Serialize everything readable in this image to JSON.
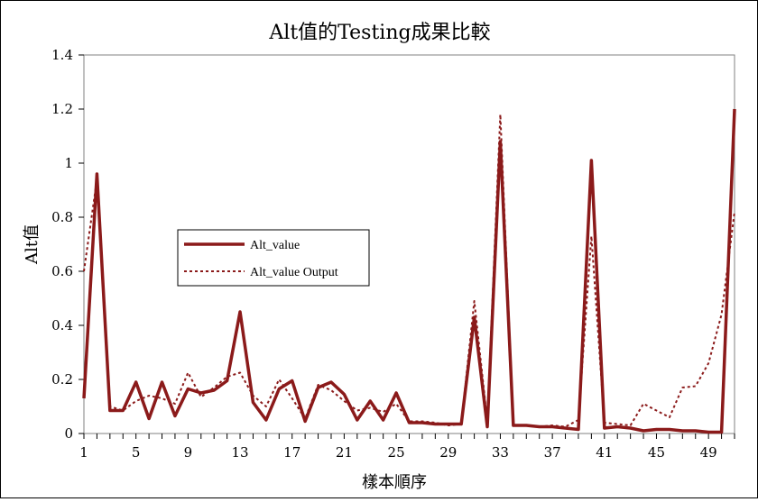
{
  "chart_data": {
    "type": "line",
    "title": "Alt值的Testing成果比較",
    "xlabel": "樣本順序",
    "ylabel": "Alt值",
    "xlim": [
      1,
      51
    ],
    "ylim": [
      0,
      1.4
    ],
    "yticks": [
      "0",
      "0.2",
      "0.4",
      "0.6",
      "0.8",
      "1",
      "1.2",
      "1.4"
    ],
    "xticks": [
      1,
      5,
      9,
      13,
      17,
      21,
      25,
      29,
      33,
      37,
      41,
      45,
      49
    ],
    "grid": false,
    "legend_position": "center-left",
    "x": [
      1,
      2,
      3,
      4,
      5,
      6,
      7,
      8,
      9,
      10,
      11,
      12,
      13,
      14,
      15,
      16,
      17,
      18,
      19,
      20,
      21,
      22,
      23,
      24,
      25,
      26,
      27,
      28,
      29,
      30,
      31,
      32,
      33,
      34,
      35,
      36,
      37,
      38,
      39,
      40,
      41,
      42,
      43,
      44,
      45,
      46,
      47,
      48,
      49,
      50,
      51
    ],
    "series": [
      {
        "name": "Alt_value",
        "style": "solid",
        "color": "#8b1a1a",
        "values": [
          0.13,
          0.96,
          0.085,
          0.085,
          0.19,
          0.055,
          0.19,
          0.065,
          0.165,
          0.15,
          0.16,
          0.195,
          0.45,
          0.115,
          0.05,
          0.165,
          0.195,
          0.045,
          0.17,
          0.19,
          0.145,
          0.05,
          0.12,
          0.05,
          0.15,
          0.04,
          0.04,
          0.035,
          0.035,
          0.035,
          0.43,
          0.025,
          1.08,
          0.03,
          0.03,
          0.025,
          0.025,
          0.02,
          0.015,
          1.01,
          0.02,
          0.025,
          0.02,
          0.01,
          0.015,
          0.015,
          0.01,
          0.01,
          0.005,
          0.005,
          1.2
        ]
      },
      {
        "name": "Alt_value Output",
        "style": "dotted",
        "color": "#8b1a1a",
        "values": [
          0.6,
          0.94,
          0.1,
          0.085,
          0.12,
          0.14,
          0.13,
          0.11,
          0.225,
          0.135,
          0.17,
          0.21,
          0.225,
          0.14,
          0.1,
          0.2,
          0.13,
          0.055,
          0.18,
          0.16,
          0.12,
          0.085,
          0.095,
          0.08,
          0.11,
          0.045,
          0.045,
          0.04,
          0.03,
          0.035,
          0.49,
          0.045,
          1.18,
          0.03,
          0.03,
          0.025,
          0.03,
          0.025,
          0.05,
          0.73,
          0.04,
          0.035,
          0.03,
          0.11,
          0.085,
          0.06,
          0.17,
          0.175,
          0.26,
          0.44,
          0.82
        ]
      }
    ]
  }
}
